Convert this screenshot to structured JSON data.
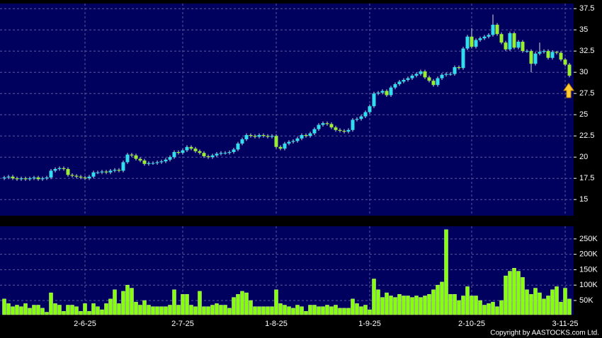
{
  "chart_data": [
    {
      "type": "candlestick",
      "up_color": "#33ddee",
      "down_color": "#99ee33",
      "grid": true,
      "categories": [
        null,
        null,
        null,
        null,
        null,
        null,
        null,
        null,
        null,
        null,
        null,
        null,
        null,
        null,
        null,
        null,
        null,
        null,
        null,
        "2-6-25",
        null,
        null,
        null,
        null,
        null,
        null,
        null,
        null,
        null,
        null,
        null,
        null,
        null,
        null,
        null,
        null,
        null,
        null,
        null,
        null,
        null,
        null,
        "2-7-25",
        null,
        null,
        null,
        null,
        null,
        null,
        null,
        null,
        null,
        null,
        null,
        null,
        null,
        null,
        null,
        null,
        null,
        null,
        null,
        null,
        null,
        "1-8-25",
        null,
        null,
        null,
        null,
        null,
        null,
        null,
        null,
        null,
        null,
        null,
        null,
        null,
        null,
        null,
        null,
        null,
        null,
        null,
        null,
        null,
        "1-9-25",
        null,
        null,
        null,
        null,
        null,
        null,
        null,
        null,
        null,
        null,
        null,
        null,
        null,
        null,
        null,
        null,
        null,
        null,
        null,
        null,
        null,
        null,
        null,
        "2-10-25",
        null,
        null,
        null,
        null,
        null,
        null,
        null,
        null,
        null,
        null,
        null,
        null,
        null,
        null,
        null,
        null,
        null,
        null,
        null,
        null,
        null,
        "3-11-25",
        null
      ],
      "open": [
        17.5,
        17.6,
        17.7,
        17.5,
        17.4,
        17.5,
        17.4,
        17.5,
        17.6,
        17.4,
        17.5,
        17.6,
        18.4,
        18.6,
        18.7,
        18.6,
        17.9,
        17.8,
        17.7,
        17.6,
        17.5,
        17.7,
        18.2,
        18.2,
        18.3,
        18.2,
        18.4,
        18.5,
        18.4,
        19.4,
        20.3,
        20.2,
        19.8,
        19.6,
        19.2,
        19.3,
        19.3,
        19.4,
        19.5,
        19.7,
        20.0,
        20.6,
        20.5,
        20.8,
        21.2,
        21.0,
        20.7,
        20.5,
        20.1,
        20.0,
        20.2,
        20.4,
        20.5,
        20.5,
        20.6,
        20.9,
        21.6,
        22.1,
        22.6,
        22.5,
        22.4,
        22.6,
        22.5,
        22.4,
        22.5,
        21.2,
        21.0,
        21.6,
        21.8,
        21.9,
        22.2,
        22.6,
        22.5,
        22.8,
        23.3,
        23.8,
        24.0,
        23.9,
        23.5,
        23.2,
        23.1,
        23.0,
        23.2,
        24.4,
        24.5,
        24.8,
        25.3,
        26.0,
        27.5,
        27.6,
        27.8,
        27.3,
        28.2,
        28.6,
        28.9,
        29.1,
        29.3,
        29.6,
        29.8,
        30.1,
        29.4,
        29.0,
        28.5,
        29.3,
        29.7,
        29.8,
        29.8,
        30.6,
        30.5,
        32.8,
        34.2,
        33.0,
        33.8,
        34.0,
        34.2,
        34.4,
        35.6,
        34.5,
        33.5,
        32.7,
        34.6,
        32.9,
        33.6,
        32.5,
        32.5,
        31.0,
        32.2,
        32.4,
        32.5,
        31.7,
        32.4,
        32.3,
        31.5,
        30.9
      ],
      "high": [
        17.8,
        17.9,
        17.9,
        17.7,
        17.7,
        17.7,
        17.7,
        17.8,
        17.8,
        17.7,
        17.8,
        18.6,
        18.8,
        18.9,
        18.9,
        18.8,
        18.1,
        18.0,
        17.9,
        17.8,
        17.9,
        18.4,
        18.4,
        18.5,
        18.5,
        18.6,
        18.7,
        18.7,
        19.6,
        20.5,
        20.5,
        20.4,
        20.0,
        19.8,
        19.5,
        19.5,
        19.6,
        19.7,
        19.9,
        20.2,
        20.8,
        20.8,
        21.0,
        21.4,
        21.4,
        21.2,
        20.9,
        20.7,
        20.3,
        20.4,
        20.6,
        20.7,
        20.7,
        20.8,
        21.1,
        21.8,
        22.3,
        22.8,
        22.8,
        22.7,
        22.8,
        22.8,
        22.7,
        22.7,
        22.7,
        21.4,
        21.8,
        22.0,
        22.1,
        22.4,
        22.8,
        22.8,
        23.0,
        23.5,
        24.0,
        24.2,
        24.2,
        24.1,
        23.7,
        23.4,
        23.3,
        23.4,
        24.6,
        24.7,
        25.0,
        25.5,
        26.2,
        27.7,
        27.8,
        28.0,
        28.0,
        28.4,
        28.8,
        29.1,
        29.3,
        29.5,
        29.8,
        30.0,
        30.3,
        30.3,
        29.6,
        29.2,
        29.5,
        29.9,
        30.0,
        30.0,
        30.8,
        30.8,
        33.0,
        34.4,
        35.2,
        34.0,
        34.2,
        34.4,
        34.6,
        36.8,
        35.8,
        34.7,
        33.7,
        34.8,
        34.8,
        33.8,
        33.8,
        32.7,
        32.7,
        32.4,
        33.5,
        32.7,
        32.7,
        32.6,
        32.5,
        32.5,
        31.7,
        31.1
      ],
      "low": [
        17.3,
        17.4,
        17.3,
        17.2,
        17.2,
        17.2,
        17.2,
        17.3,
        17.2,
        17.2,
        17.3,
        17.4,
        18.2,
        18.4,
        18.4,
        17.7,
        17.6,
        17.5,
        17.4,
        17.3,
        17.3,
        17.5,
        18.0,
        18.0,
        18.0,
        18.0,
        18.2,
        18.2,
        18.2,
        19.2,
        20.0,
        19.6,
        19.4,
        19.0,
        19.0,
        19.1,
        19.1,
        19.2,
        19.3,
        19.5,
        19.8,
        20.3,
        20.3,
        20.6,
        20.8,
        20.5,
        20.3,
        19.9,
        19.8,
        19.8,
        20.0,
        20.2,
        20.3,
        20.3,
        20.4,
        20.7,
        21.4,
        21.9,
        22.3,
        22.2,
        22.2,
        22.3,
        22.2,
        22.2,
        21.0,
        20.8,
        20.8,
        21.4,
        21.6,
        21.7,
        22.0,
        22.3,
        22.3,
        22.6,
        23.1,
        23.6,
        23.7,
        23.3,
        23.0,
        22.9,
        22.8,
        22.8,
        23.0,
        24.2,
        24.3,
        24.6,
        25.1,
        25.8,
        27.3,
        27.4,
        27.1,
        27.1,
        28.0,
        28.4,
        28.7,
        28.9,
        29.1,
        29.4,
        29.6,
        29.2,
        28.8,
        28.3,
        28.3,
        29.1,
        29.5,
        29.6,
        29.6,
        30.3,
        30.3,
        32.6,
        32.8,
        32.8,
        33.6,
        33.8,
        34.0,
        34.2,
        34.3,
        33.3,
        32.5,
        32.5,
        32.7,
        32.7,
        32.3,
        32.3,
        30.0,
        30.8,
        32.0,
        32.2,
        31.5,
        31.5,
        32.1,
        31.3,
        30.7,
        29.4
      ],
      "close": [
        17.6,
        17.7,
        17.5,
        17.4,
        17.5,
        17.4,
        17.5,
        17.6,
        17.4,
        17.5,
        17.6,
        18.4,
        18.6,
        18.7,
        18.6,
        17.9,
        17.8,
        17.7,
        17.6,
        17.5,
        17.7,
        18.2,
        18.2,
        18.3,
        18.2,
        18.4,
        18.5,
        18.4,
        19.4,
        20.3,
        20.2,
        19.8,
        19.6,
        19.2,
        19.3,
        19.3,
        19.4,
        19.5,
        19.7,
        20.0,
        20.6,
        20.5,
        20.8,
        21.2,
        21.0,
        20.7,
        20.5,
        20.1,
        20.0,
        20.2,
        20.4,
        20.5,
        20.5,
        20.6,
        20.9,
        21.6,
        22.1,
        22.6,
        22.5,
        22.4,
        22.6,
        22.5,
        22.4,
        22.5,
        21.2,
        21.0,
        21.6,
        21.8,
        21.9,
        22.2,
        22.6,
        22.5,
        22.8,
        23.3,
        23.8,
        24.0,
        23.9,
        23.5,
        23.2,
        23.1,
        23.0,
        23.2,
        24.4,
        24.5,
        24.8,
        25.3,
        26.0,
        27.5,
        27.6,
        27.8,
        27.3,
        28.2,
        28.6,
        28.9,
        29.1,
        29.3,
        29.6,
        29.8,
        30.1,
        29.4,
        29.0,
        28.5,
        29.3,
        29.7,
        29.8,
        29.8,
        30.6,
        30.5,
        32.8,
        34.2,
        33.0,
        33.8,
        34.0,
        34.2,
        34.4,
        35.6,
        34.5,
        33.5,
        32.7,
        34.6,
        32.9,
        33.6,
        32.5,
        32.5,
        31.0,
        32.2,
        32.4,
        32.5,
        31.7,
        32.4,
        32.3,
        31.5,
        30.9,
        29.6
      ],
      "ylim": [
        13.1,
        38.1
      ],
      "yticks": [
        15,
        17.5,
        20,
        22.5,
        25,
        27.5,
        30,
        32.5,
        35,
        37.5
      ]
    },
    {
      "type": "bar",
      "color": "#88ff11",
      "grid": true,
      "values": [
        55000,
        40000,
        30000,
        35000,
        30000,
        40000,
        25000,
        35000,
        35000,
        25000,
        12000,
        75000,
        40000,
        35000,
        15000,
        35000,
        35000,
        30000,
        15000,
        40000,
        15000,
        40000,
        30000,
        20000,
        40000,
        55000,
        85000,
        40000,
        80000,
        100000,
        90000,
        45000,
        35000,
        50000,
        35000,
        30000,
        30000,
        30000,
        30000,
        35000,
        85000,
        35000,
        70000,
        70000,
        35000,
        30000,
        80000,
        30000,
        30000,
        35000,
        40000,
        35000,
        35000,
        25000,
        60000,
        70000,
        80000,
        75000,
        50000,
        30000,
        30000,
        30000,
        30000,
        30000,
        85000,
        40000,
        35000,
        30000,
        25000,
        35000,
        30000,
        15000,
        35000,
        35000,
        30000,
        30000,
        35000,
        30000,
        35000,
        25000,
        25000,
        25000,
        55000,
        40000,
        30000,
        35000,
        20000,
        120000,
        85000,
        60000,
        75000,
        65000,
        60000,
        70000,
        65000,
        65000,
        60000,
        65000,
        60000,
        65000,
        70000,
        85000,
        100000,
        110000,
        280000,
        70000,
        70000,
        50000,
        65000,
        95000,
        65000,
        65000,
        50000,
        35000,
        40000,
        45000,
        30000,
        50000,
        130000,
        145000,
        155000,
        145000,
        125000,
        85000,
        70000,
        90000,
        75000,
        55000,
        65000,
        85000,
        95000,
        45000,
        90000,
        55000
      ],
      "ylim": [
        4000,
        291000
      ],
      "yticks": [
        {
          "value": 50000,
          "label": "50K"
        },
        {
          "value": 100000,
          "label": "100K"
        },
        {
          "value": 150000,
          "label": "150K"
        },
        {
          "value": 200000,
          "label": "200K"
        },
        {
          "value": 250000,
          "label": "250K"
        }
      ]
    }
  ],
  "footer": "Copyright by AASTOCKS.com Ltd."
}
